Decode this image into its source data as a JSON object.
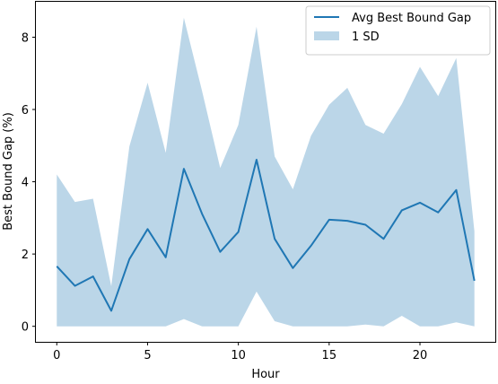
{
  "chart_data": {
    "type": "line",
    "title": "",
    "xlabel": "Hour",
    "ylabel": "Best Bound Gap (%)",
    "xlim": [
      -1.15,
      24.15
    ],
    "ylim": [
      -0.43,
      8.98
    ],
    "xticks": [
      0,
      5,
      10,
      15,
      20
    ],
    "yticks": [
      0,
      2,
      4,
      6,
      8
    ],
    "grid": false,
    "legend_position": "upper right",
    "x": [
      0,
      1,
      2,
      3,
      4,
      5,
      6,
      7,
      8,
      9,
      10,
      11,
      12,
      13,
      14,
      15,
      16,
      17,
      18,
      19,
      20,
      21,
      22,
      23
    ],
    "series": [
      {
        "name": "Avg Best Bound Gap",
        "kind": "line",
        "color": "#1f77b4",
        "values": [
          1.66,
          1.12,
          1.38,
          0.43,
          1.86,
          2.69,
          1.91,
          4.36,
          3.11,
          2.06,
          2.61,
          4.61,
          2.42,
          1.61,
          2.23,
          2.95,
          2.92,
          2.81,
          2.42,
          3.21,
          3.42,
          3.15,
          3.77,
          1.26
        ]
      },
      {
        "name": "1 SD",
        "kind": "band",
        "color": "#1f77b4",
        "opacity": 0.3,
        "upper": [
          4.2,
          3.44,
          3.53,
          1.11,
          4.98,
          6.74,
          4.8,
          8.54,
          6.51,
          4.38,
          5.57,
          8.29,
          4.7,
          3.79,
          5.27,
          6.13,
          6.6,
          5.57,
          5.33,
          6.15,
          7.18,
          6.37,
          7.42,
          2.63
        ],
        "lower": [
          0,
          0,
          0,
          0,
          0,
          0,
          0,
          0.2,
          0,
          0,
          0,
          0.96,
          0.14,
          0,
          0,
          0,
          0,
          0.05,
          0,
          0.29,
          0,
          0,
          0.11,
          0
        ]
      }
    ]
  }
}
